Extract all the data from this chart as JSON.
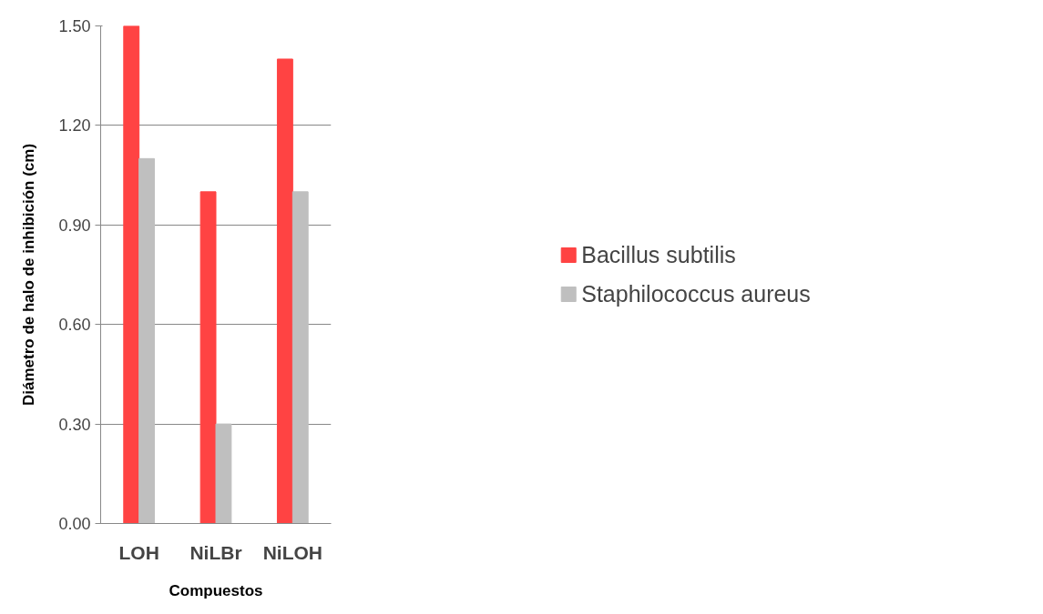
{
  "chart_data": {
    "type": "bar",
    "xlabel": "Compuestos",
    "ylabel": "Diámetro de halo de inhibición (cm)",
    "categories": [
      "LOH",
      "NiLBr",
      "NiLOH"
    ],
    "series": [
      {
        "name": "Bacillus subtilis",
        "color": "#ff4343",
        "values": [
          1.5,
          1.0,
          1.4
        ]
      },
      {
        "name": "Staphilococcus aureus",
        "color": "#bfbfbf",
        "values": [
          1.1,
          0.3,
          1.0
        ]
      }
    ],
    "ylim": [
      0,
      1.5
    ],
    "yticks": [
      {
        "value": 0,
        "label": "0.00"
      },
      {
        "value": 0.3,
        "label": "0.30"
      },
      {
        "value": 0.6,
        "label": "0.60"
      },
      {
        "value": 0.9,
        "label": "0.90"
      },
      {
        "value": 1.2,
        "label": "1.20"
      },
      {
        "value": 1.5,
        "label": "1.50"
      }
    ],
    "grid": "y",
    "legend": "right"
  }
}
